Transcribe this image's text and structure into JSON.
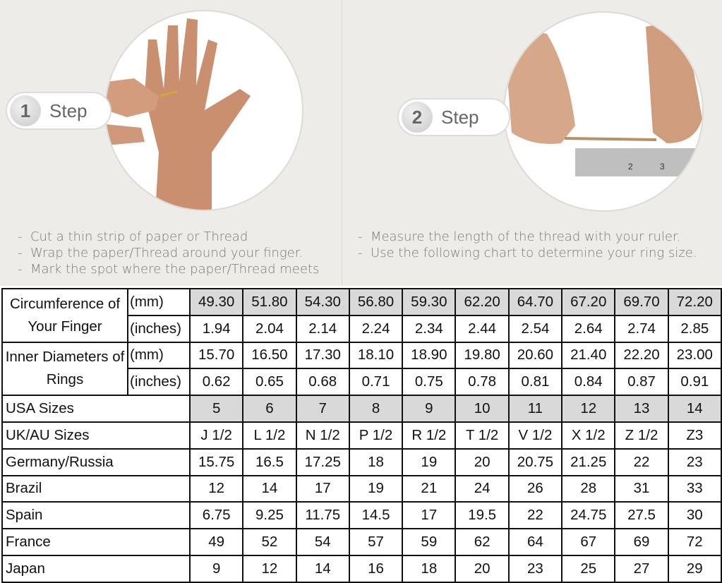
{
  "steps": [
    {
      "number": "1",
      "label": "Step",
      "image": "hand-with-thread-on-finger",
      "instructions": [
        "Cut a thin strip of paper or Thread",
        "Wrap the paper/Thread around your finger.",
        "Mark the spot where the paper/Thread meets"
      ]
    },
    {
      "number": "2",
      "label": "Step",
      "image": "thread-measured-with-ruler",
      "instructions": [
        "Measure the length of the thread with your ruler.",
        "Use the following chart to determine your ring size."
      ]
    }
  ],
  "table": {
    "highlight_color": "#d9d9d9",
    "groups": [
      {
        "label": "Circumference of Your Finger",
        "rows": [
          {
            "unit": "(mm)",
            "values": [
              "49.30",
              "51.80",
              "54.30",
              "56.80",
              "59.30",
              "62.20",
              "64.70",
              "67.20",
              "69.70",
              "72.20"
            ]
          },
          {
            "unit": "(inches)",
            "values": [
              "1.94",
              "2.04",
              "2.14",
              "2.24",
              "2.34",
              "2.44",
              "2.54",
              "2.64",
              "2.74",
              "2.85"
            ]
          }
        ]
      },
      {
        "label": "Inner Diameters of Rings",
        "rows": [
          {
            "unit": "(mm)",
            "values": [
              "15.70",
              "16.50",
              "17.30",
              "18.10",
              "18.90",
              "19.80",
              "20.60",
              "21.40",
              "22.20",
              "23.00"
            ]
          },
          {
            "unit": "(inches)",
            "values": [
              "0.62",
              "0.65",
              "0.68",
              "0.71",
              "0.75",
              "0.78",
              "0.81",
              "0.84",
              "0.87",
              "0.91"
            ]
          }
        ]
      }
    ],
    "rows": [
      {
        "label": "USA Sizes",
        "values": [
          "5",
          "6",
          "7",
          "8",
          "9",
          "10",
          "11",
          "12",
          "13",
          "14"
        ]
      },
      {
        "label": "UK/AU Sizes",
        "values": [
          "J 1/2",
          "L 1/2",
          "N 1/2",
          "P 1/2",
          "R 1/2",
          "T 1/2",
          "V 1/2",
          "X 1/2",
          "Z 1/2",
          "Z3"
        ]
      },
      {
        "label": "Germany/Russia",
        "values": [
          "15.75",
          "16.5",
          "17.25",
          "18",
          "19",
          "20",
          "20.75",
          "21.25",
          "22",
          "23"
        ]
      },
      {
        "label": "Brazil",
        "values": [
          "12",
          "14",
          "17",
          "19",
          "21",
          "24",
          "26",
          "28",
          "31",
          "33"
        ]
      },
      {
        "label": "Spain",
        "values": [
          "6.75",
          "9.25",
          "11.75",
          "14.5",
          "17",
          "19.5",
          "22",
          "24.75",
          "27.5",
          "30"
        ]
      },
      {
        "label": "France",
        "values": [
          "49",
          "52",
          "54",
          "57",
          "59",
          "62",
          "64",
          "67",
          "69",
          "72"
        ]
      },
      {
        "label": "Japan",
        "values": [
          "9",
          "12",
          "14",
          "16",
          "18",
          "20",
          "23",
          "25",
          "27",
          "29"
        ]
      }
    ]
  }
}
